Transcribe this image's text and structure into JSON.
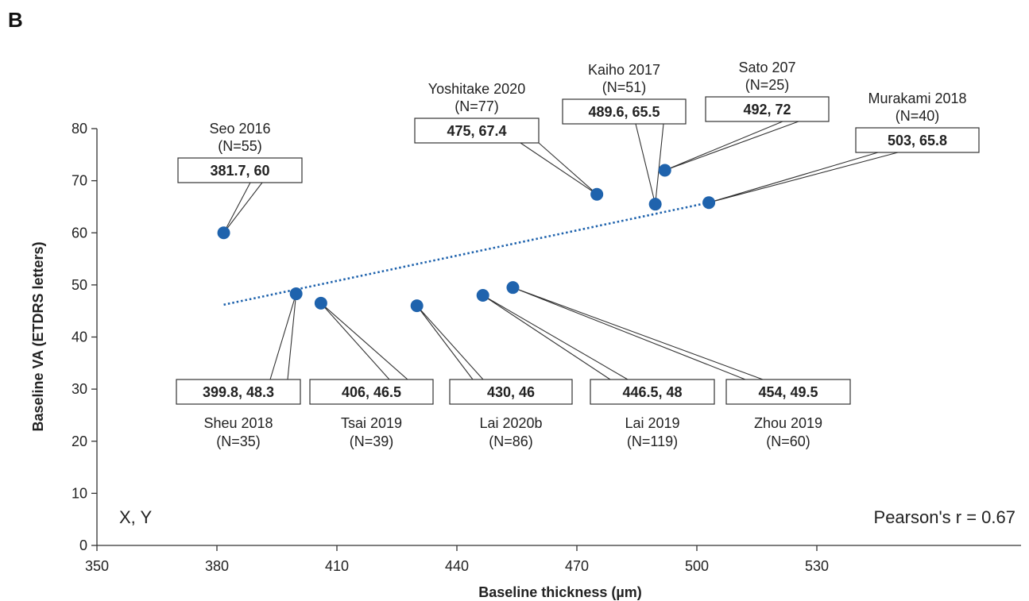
{
  "panel_label": "B",
  "colors": {
    "point": "#1f63ad",
    "trend": "#1f63ad",
    "axis": "#333333",
    "box_border": "#333333"
  },
  "chart_data": {
    "type": "scatter",
    "xlabel": "Baseline thickness (µm)",
    "ylabel": "Baseline VA (ETDRS letters)",
    "xlim": [
      350,
      545
    ],
    "ylim": [
      0,
      80
    ],
    "xticks": [
      350,
      380,
      410,
      440,
      470,
      500,
      530
    ],
    "yticks": [
      0,
      10,
      20,
      30,
      40,
      50,
      60,
      70,
      80
    ],
    "corner_label": "X, Y",
    "correlation_label": "Pearson's r = 0.67",
    "trendline": {
      "x": [
        381.7,
        503
      ],
      "y": [
        46.2,
        65.8
      ],
      "style": "dotted"
    },
    "points": [
      {
        "study": "Seo 2016",
        "n": "(N=55)",
        "label": "381.7, 60",
        "x": 381.7,
        "y": 60
      },
      {
        "study": "Sheu 2018",
        "n": "(N=35)",
        "label": "399.8, 48.3",
        "x": 399.8,
        "y": 48.3
      },
      {
        "study": "Tsai 2019",
        "n": "(N=39)",
        "label": "406, 46.5",
        "x": 406,
        "y": 46.5
      },
      {
        "study": "Lai 2020b",
        "n": "(N=86)",
        "label": "430, 46",
        "x": 430,
        "y": 46
      },
      {
        "study": "Lai 2019",
        "n": "(N=119)",
        "label": "446.5, 48",
        "x": 446.5,
        "y": 48
      },
      {
        "study": "Zhou 2019",
        "n": "(N=60)",
        "label": "454, 49.5",
        "x": 454,
        "y": 49.5
      },
      {
        "study": "Yoshitake 2020",
        "n": "(N=77)",
        "label": "475, 67.4",
        "x": 475,
        "y": 67.4
      },
      {
        "study": "Kaiho 2017",
        "n": "(N=51)",
        "label": "489.6, 65.5",
        "x": 489.6,
        "y": 65.5
      },
      {
        "study": "Sato 207",
        "n": "(N=25)",
        "label": "492, 72",
        "x": 492,
        "y": 72
      },
      {
        "study": "Murakami 2018",
        "n": "(N=40)",
        "label": "503, 65.8",
        "x": 503,
        "y": 65.8
      }
    ]
  }
}
